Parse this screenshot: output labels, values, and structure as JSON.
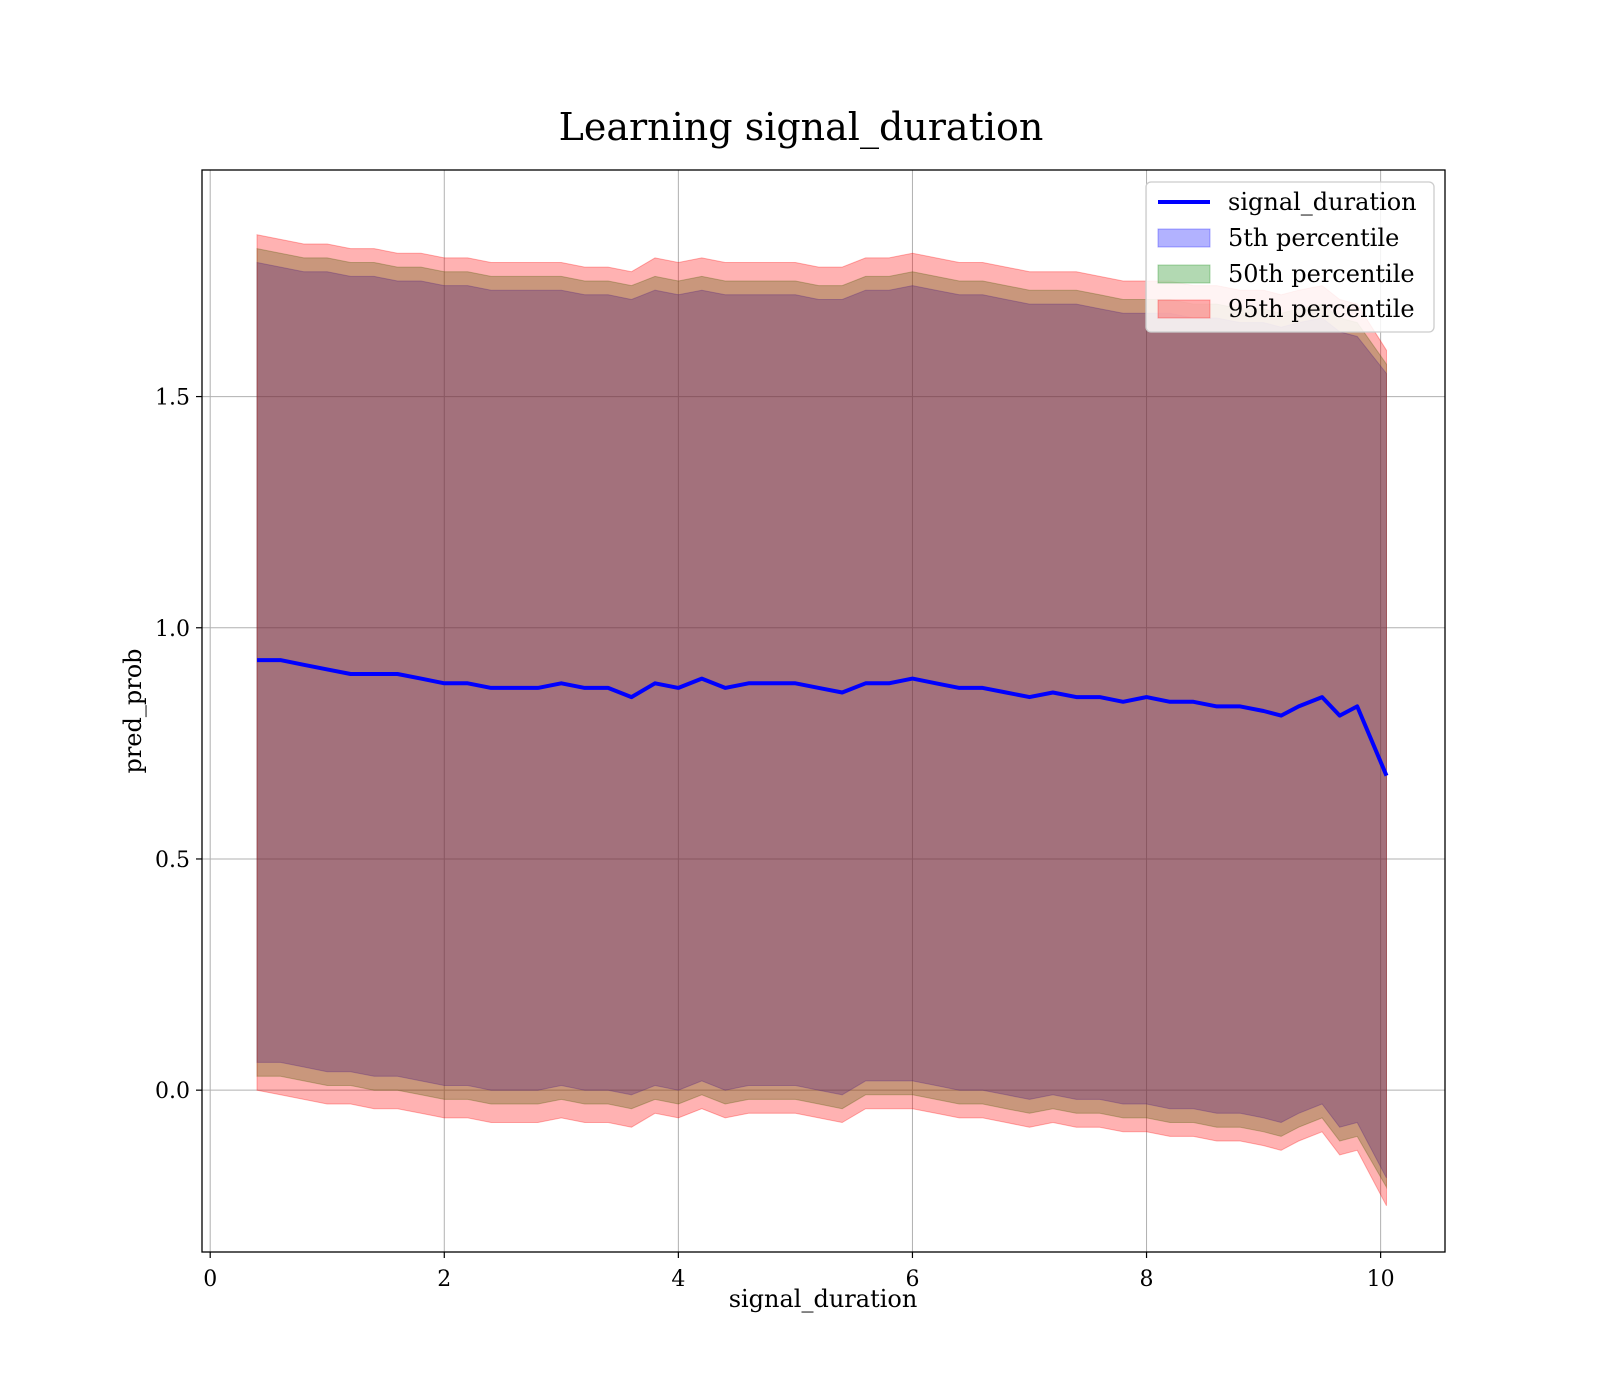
{
  "chart_data": {
    "type": "area",
    "title": "Learning signal_duration",
    "xlabel": "signal_duration",
    "ylabel": "pred_prob",
    "xlim": [
      -0.07,
      10.55
    ],
    "ylim": [
      -0.35,
      1.99
    ],
    "xticks": [
      0,
      2,
      4,
      6,
      8,
      10
    ],
    "xtick_labels": [
      "0",
      "2",
      "4",
      "6",
      "8",
      "10"
    ],
    "yticks": [
      0.0,
      0.5,
      1.0,
      1.5
    ],
    "ytick_labels": [
      "0.0",
      "0.5",
      "1.0",
      "1.5"
    ],
    "grid": true,
    "legend_position": "top-right",
    "x": [
      0.4,
      0.6,
      0.8,
      1.0,
      1.2,
      1.4,
      1.6,
      1.8,
      2.0,
      2.2,
      2.4,
      2.6,
      2.8,
      3.0,
      3.2,
      3.4,
      3.6,
      3.8,
      4.0,
      4.2,
      4.4,
      4.6,
      4.8,
      5.0,
      5.2,
      5.4,
      5.6,
      5.8,
      6.0,
      6.2,
      6.4,
      6.6,
      6.8,
      7.0,
      7.2,
      7.4,
      7.6,
      7.8,
      8.0,
      8.2,
      8.4,
      8.6,
      8.8,
      9.0,
      9.15,
      9.3,
      9.5,
      9.65,
      9.8,
      10.05
    ],
    "series": [
      {
        "name": "signal_duration",
        "kind": "line",
        "color": "#0000ff",
        "values": [
          0.93,
          0.93,
          0.92,
          0.91,
          0.9,
          0.9,
          0.9,
          0.89,
          0.88,
          0.88,
          0.87,
          0.87,
          0.87,
          0.88,
          0.87,
          0.87,
          0.85,
          0.88,
          0.87,
          0.89,
          0.87,
          0.88,
          0.88,
          0.88,
          0.87,
          0.86,
          0.88,
          0.88,
          0.89,
          0.88,
          0.87,
          0.87,
          0.86,
          0.85,
          0.86,
          0.85,
          0.85,
          0.84,
          0.85,
          0.84,
          0.84,
          0.83,
          0.83,
          0.82,
          0.81,
          0.83,
          0.85,
          0.81,
          0.83,
          0.68
        ]
      },
      {
        "name": "5th percentile",
        "kind": "band",
        "color": "#0000ff",
        "upper": [
          1.79,
          1.78,
          1.77,
          1.77,
          1.76,
          1.76,
          1.75,
          1.75,
          1.74,
          1.74,
          1.73,
          1.73,
          1.73,
          1.73,
          1.72,
          1.72,
          1.71,
          1.73,
          1.72,
          1.73,
          1.72,
          1.72,
          1.72,
          1.72,
          1.71,
          1.71,
          1.73,
          1.73,
          1.74,
          1.73,
          1.72,
          1.72,
          1.71,
          1.7,
          1.7,
          1.7,
          1.69,
          1.68,
          1.68,
          1.68,
          1.67,
          1.67,
          1.66,
          1.66,
          1.65,
          1.66,
          1.67,
          1.64,
          1.63,
          1.55
        ],
        "lower": [
          0.06,
          0.06,
          0.05,
          0.04,
          0.04,
          0.03,
          0.03,
          0.02,
          0.01,
          0.01,
          0.0,
          0.0,
          0.0,
          0.01,
          0.0,
          0.0,
          -0.01,
          0.01,
          0.0,
          0.02,
          0.0,
          0.01,
          0.01,
          0.01,
          0.0,
          -0.01,
          0.02,
          0.02,
          0.02,
          0.01,
          0.0,
          0.0,
          -0.01,
          -0.02,
          -0.01,
          -0.02,
          -0.02,
          -0.03,
          -0.03,
          -0.04,
          -0.04,
          -0.05,
          -0.05,
          -0.06,
          -0.07,
          -0.05,
          -0.03,
          -0.08,
          -0.07,
          -0.19
        ]
      },
      {
        "name": "50th percentile",
        "kind": "band",
        "color": "#008000",
        "upper": [
          1.82,
          1.81,
          1.8,
          1.8,
          1.79,
          1.79,
          1.78,
          1.78,
          1.77,
          1.77,
          1.76,
          1.76,
          1.76,
          1.76,
          1.75,
          1.75,
          1.74,
          1.76,
          1.75,
          1.76,
          1.75,
          1.75,
          1.75,
          1.75,
          1.74,
          1.74,
          1.76,
          1.76,
          1.77,
          1.76,
          1.75,
          1.75,
          1.74,
          1.73,
          1.73,
          1.73,
          1.72,
          1.71,
          1.71,
          1.71,
          1.7,
          1.7,
          1.69,
          1.69,
          1.68,
          1.69,
          1.7,
          1.67,
          1.66,
          1.57
        ],
        "lower": [
          0.03,
          0.03,
          0.02,
          0.01,
          0.01,
          0.0,
          0.0,
          -0.01,
          -0.02,
          -0.02,
          -0.03,
          -0.03,
          -0.03,
          -0.02,
          -0.03,
          -0.03,
          -0.04,
          -0.02,
          -0.03,
          -0.01,
          -0.03,
          -0.02,
          -0.02,
          -0.02,
          -0.03,
          -0.04,
          -0.01,
          -0.01,
          -0.01,
          -0.02,
          -0.03,
          -0.03,
          -0.04,
          -0.05,
          -0.04,
          -0.05,
          -0.05,
          -0.06,
          -0.06,
          -0.07,
          -0.07,
          -0.08,
          -0.08,
          -0.09,
          -0.1,
          -0.08,
          -0.06,
          -0.11,
          -0.1,
          -0.21
        ]
      },
      {
        "name": "95th percentile",
        "kind": "band",
        "color": "#ff0000",
        "upper": [
          1.85,
          1.84,
          1.83,
          1.83,
          1.82,
          1.82,
          1.81,
          1.81,
          1.8,
          1.8,
          1.79,
          1.79,
          1.79,
          1.79,
          1.78,
          1.78,
          1.77,
          1.8,
          1.79,
          1.8,
          1.79,
          1.79,
          1.79,
          1.79,
          1.78,
          1.78,
          1.8,
          1.8,
          1.81,
          1.8,
          1.79,
          1.79,
          1.78,
          1.77,
          1.77,
          1.77,
          1.76,
          1.75,
          1.75,
          1.75,
          1.74,
          1.74,
          1.73,
          1.73,
          1.72,
          1.73,
          1.74,
          1.71,
          1.7,
          1.6
        ],
        "lower": [
          0.0,
          -0.01,
          -0.02,
          -0.03,
          -0.03,
          -0.04,
          -0.04,
          -0.05,
          -0.06,
          -0.06,
          -0.07,
          -0.07,
          -0.07,
          -0.06,
          -0.07,
          -0.07,
          -0.08,
          -0.05,
          -0.06,
          -0.04,
          -0.06,
          -0.05,
          -0.05,
          -0.05,
          -0.06,
          -0.07,
          -0.04,
          -0.04,
          -0.04,
          -0.05,
          -0.06,
          -0.06,
          -0.07,
          -0.08,
          -0.07,
          -0.08,
          -0.08,
          -0.09,
          -0.09,
          -0.1,
          -0.1,
          -0.11,
          -0.11,
          -0.12,
          -0.13,
          -0.11,
          -0.09,
          -0.14,
          -0.13,
          -0.25
        ]
      }
    ]
  }
}
